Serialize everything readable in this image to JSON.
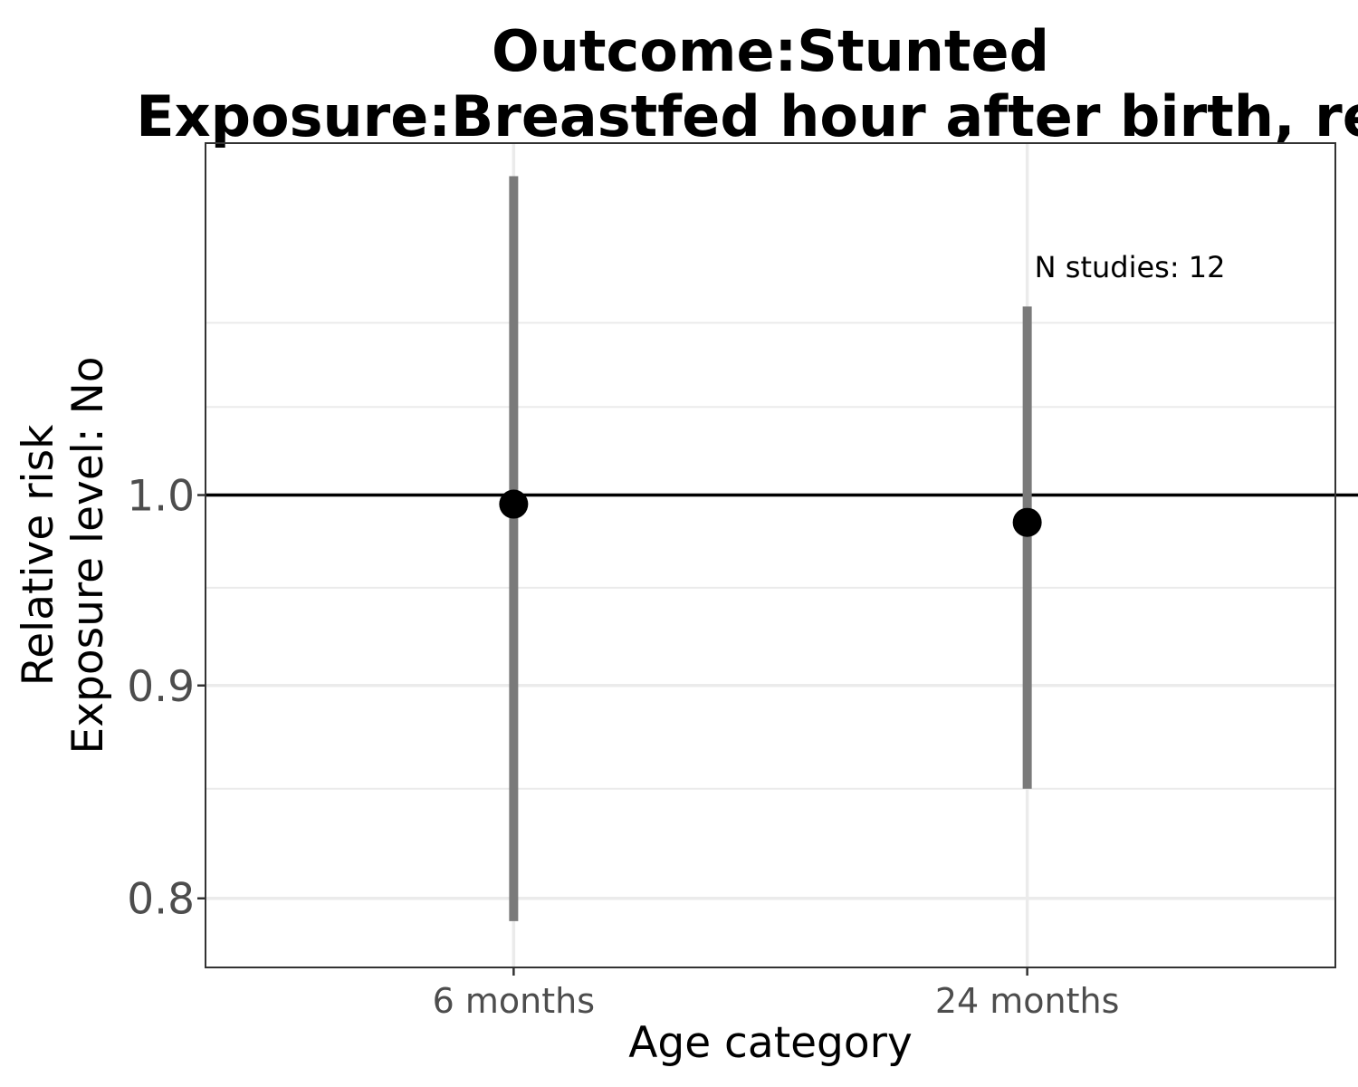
{
  "chart_data": {
    "type": "scatter",
    "title_lines": [
      "Outcome:Stunted",
      "Exposure:Breastfed hour after birth, ref"
    ],
    "ylabel_lines": [
      "Relative risk",
      "Exposure level: No"
    ],
    "xlabel": "Age category",
    "categories": [
      "6 months",
      "24 months"
    ],
    "points": [
      {
        "category": "6 months",
        "estimate": 0.995,
        "ci_lower": 0.79,
        "ci_upper": 1.193
      },
      {
        "category": "24 months",
        "estimate": 0.985,
        "ci_lower": 0.85,
        "ci_upper": 1.11
      }
    ],
    "reference_line": 1.0,
    "y_scale": "log",
    "ylim": [
      0.77,
      1.215
    ],
    "yticks": [
      0.8,
      0.9,
      1.0
    ],
    "ytick_labels": [
      "0.8",
      "0.9",
      "1.0"
    ],
    "y_minor_grid": [
      0.85,
      0.95,
      1.05,
      1.1
    ],
    "annotation": {
      "text": "N studies: 12",
      "x_category": 1.2,
      "y": 1.128
    },
    "grid": true,
    "legend": "none",
    "colors": {
      "point": "#000000",
      "errorbar": "#7a7a7a",
      "reference": "#000000",
      "grid": "#ebebeb"
    }
  }
}
